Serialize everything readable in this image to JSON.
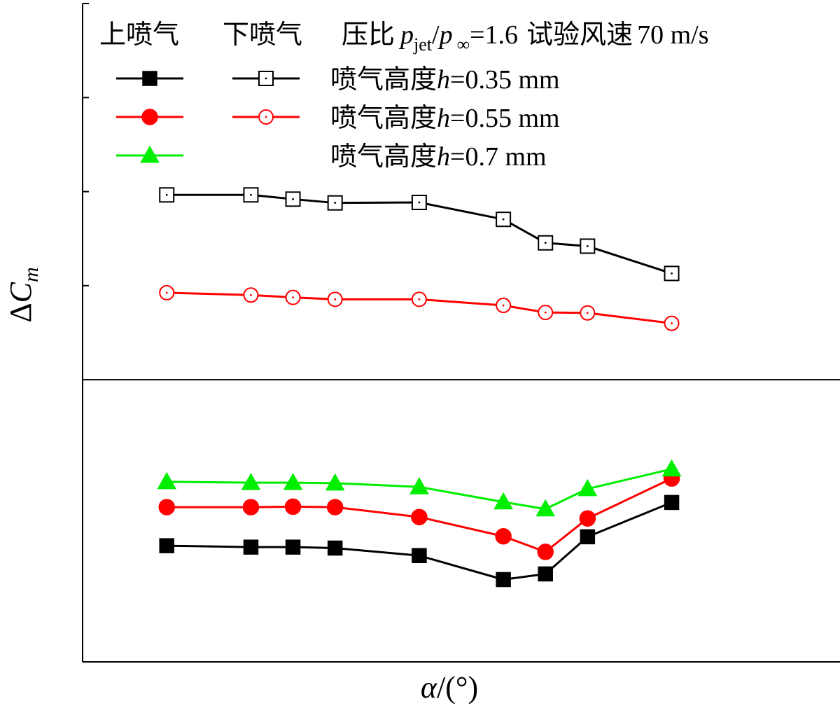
{
  "chart_data": {
    "type": "line",
    "title": "",
    "xlabel_symbol": "α",
    "xlabel_unit": "/(°)",
    "ylabel_delta": "Δ",
    "ylabel_symbol": "C",
    "ylabel_sub": "m",
    "x": [
      -4,
      0,
      2,
      4,
      8,
      12,
      14,
      16,
      20
    ],
    "xlim": [
      -8,
      28
    ],
    "ylim": [
      -0.06,
      0.08
    ],
    "y_zero_line": 0,
    "grid": false,
    "legend": {
      "placement": "top",
      "header": {
        "upper": "上喷气",
        "lower": "下喷气",
        "pressure_label": "压比",
        "p": "p",
        "jet_sub": "jet",
        "slash": "/",
        "inf_sub": "∞",
        "pressure_value": "=1.6",
        "speed_label": "试验风速",
        "speed_value": "70 m/s"
      },
      "rows": [
        {
          "prefix": "喷气高度",
          "var": "h",
          "value": "=0.35 mm",
          "color": "#000000"
        },
        {
          "prefix": "喷气高度",
          "var": "h",
          "value": "=0.55 mm",
          "color": "#ff0000"
        },
        {
          "prefix": "喷气高度",
          "var": "h",
          "value": "=0.7 mm",
          "color": "#00ee00"
        }
      ]
    },
    "series": [
      {
        "name": "上喷气 h=0.35 mm",
        "jet": "upper",
        "marker": "square-filled",
        "color": "#000000",
        "values": [
          -0.0353,
          -0.0356,
          -0.0356,
          -0.0358,
          -0.0374,
          -0.0425,
          -0.0413,
          -0.0334,
          -0.0261
        ]
      },
      {
        "name": "下喷气 h=0.35 mm",
        "jet": "lower",
        "marker": "square-open",
        "color": "#000000",
        "values": [
          0.0393,
          0.0393,
          0.0384,
          0.0376,
          0.0377,
          0.0341,
          0.0291,
          0.0284,
          0.0226
        ]
      },
      {
        "name": "上喷气 h=0.55 mm",
        "jet": "upper",
        "marker": "circle-filled",
        "color": "#ff0000",
        "values": [
          -0.0271,
          -0.0271,
          -0.027,
          -0.0271,
          -0.0292,
          -0.0333,
          -0.0366,
          -0.0295,
          -0.021
        ]
      },
      {
        "name": "下喷气 h=0.55 mm",
        "jet": "lower",
        "marker": "circle-open",
        "color": "#ff0000",
        "values": [
          0.0185,
          0.018,
          0.0175,
          0.0171,
          0.0171,
          0.0158,
          0.0143,
          0.0142,
          0.012
        ]
      },
      {
        "name": "上喷气 h=0.7 mm",
        "jet": "upper",
        "marker": "triangle-filled",
        "color": "#00ee00",
        "values": [
          -0.0217,
          -0.0219,
          -0.0219,
          -0.022,
          -0.0228,
          -0.026,
          -0.0275,
          -0.0232,
          -0.019
        ]
      }
    ]
  }
}
